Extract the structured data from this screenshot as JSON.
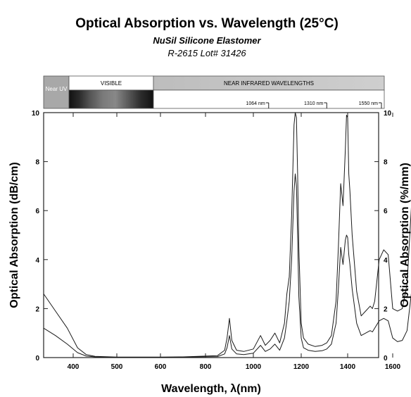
{
  "chart_data": {
    "type": "line",
    "title": "Optical Absorption vs. Wavelength (25°C)",
    "subtitle": "NuSil Silicone Elastomer",
    "subtitle2": "R-2615  Lot# 31426",
    "xlabel": "Wavelength, λ(nm)",
    "ylabel_left": "Optical Absorption (dB/cm)",
    "ylabel_right": "Optical Absorption (%/mm)",
    "xlim": [
      350,
      1700
    ],
    "ylim": [
      0,
      10
    ],
    "y2lim": [
      0,
      10
    ],
    "x_ticks": [
      400,
      500,
      600,
      800,
      1000,
      1200,
      1400,
      1600
    ],
    "y_ticks": [
      0,
      2,
      4,
      6,
      8,
      10
    ],
    "y2_ticks": [
      0,
      2,
      4,
      6,
      8,
      10
    ],
    "grid": false,
    "bands": {
      "uv": "Near UV",
      "visible": "VISIBLE",
      "nir": "NEAR INFRARED WAVELENGTHS"
    },
    "markers": [
      {
        "x": 1064,
        "label": "1064 nm"
      },
      {
        "x": 1310,
        "label": "1310 nm"
      },
      {
        "x": 1550,
        "label": "1550 nm"
      }
    ],
    "series": [
      {
        "color": "#1a1a1a",
        "x": [
          350,
          370,
          390,
          410,
          430,
          450,
          500,
          600,
          700,
          850,
          880,
          890,
          900,
          910,
          930,
          960,
          1000,
          1030,
          1050,
          1070,
          1090,
          1110,
          1130,
          1140,
          1150,
          1160,
          1170,
          1175,
          1180,
          1185,
          1190,
          1200,
          1210,
          1230,
          1260,
          1290,
          1310,
          1330,
          1350,
          1360,
          1370,
          1380,
          1390,
          1395,
          1400,
          1405,
          1410,
          1420,
          1440,
          1460,
          1480,
          1500,
          1510,
          1520,
          1540,
          1560,
          1580,
          1600,
          1620,
          1640,
          1660,
          1680,
          1690,
          1700
        ],
        "values": [
          2.6,
          1.9,
          1.2,
          0.4,
          0.12,
          0.05,
          0.02,
          0.02,
          0.03,
          0.08,
          0.3,
          0.8,
          1.6,
          0.7,
          0.3,
          0.25,
          0.35,
          0.9,
          0.5,
          0.7,
          1.0,
          0.6,
          1.4,
          2.6,
          3.3,
          5.8,
          9.5,
          10.0,
          9.8,
          7.5,
          4.5,
          1.4,
          0.8,
          0.55,
          0.45,
          0.5,
          0.6,
          0.9,
          2.3,
          4.5,
          7.1,
          6.2,
          8.5,
          9.9,
          9.8,
          7.5,
          6.8,
          5.0,
          2.7,
          1.7,
          1.9,
          2.1,
          2.0,
          2.3,
          4.0,
          4.4,
          4.2,
          2.0,
          1.9,
          2.0,
          3.0,
          6.5,
          8.8,
          10.0
        ]
      },
      {
        "color": "#1a1a1a",
        "x": [
          350,
          370,
          390,
          410,
          430,
          450,
          500,
          600,
          700,
          850,
          880,
          890,
          900,
          910,
          930,
          960,
          1000,
          1030,
          1050,
          1070,
          1090,
          1110,
          1130,
          1140,
          1150,
          1160,
          1170,
          1175,
          1180,
          1185,
          1190,
          1200,
          1210,
          1230,
          1260,
          1290,
          1310,
          1330,
          1350,
          1360,
          1370,
          1380,
          1390,
          1395,
          1400,
          1405,
          1410,
          1420,
          1440,
          1460,
          1480,
          1500,
          1510,
          1520,
          1540,
          1560,
          1580,
          1600,
          1620,
          1640,
          1660,
          1680,
          1690,
          1700
        ],
        "values": [
          1.2,
          0.9,
          0.55,
          0.2,
          0.06,
          0.03,
          0.01,
          0.01,
          0.02,
          0.04,
          0.15,
          0.4,
          0.9,
          0.35,
          0.15,
          0.12,
          0.18,
          0.5,
          0.25,
          0.35,
          0.55,
          0.3,
          0.8,
          1.5,
          2.3,
          4.0,
          6.8,
          7.5,
          7.0,
          5.0,
          2.5,
          0.8,
          0.4,
          0.3,
          0.25,
          0.28,
          0.35,
          0.55,
          1.4,
          2.8,
          4.5,
          3.8,
          4.8,
          5.0,
          4.9,
          4.2,
          3.8,
          2.8,
          1.4,
          0.9,
          1.0,
          1.1,
          1.05,
          1.2,
          1.5,
          1.6,
          1.5,
          0.8,
          0.65,
          0.7,
          1.1,
          2.8,
          4.5,
          6.0
        ]
      }
    ]
  }
}
